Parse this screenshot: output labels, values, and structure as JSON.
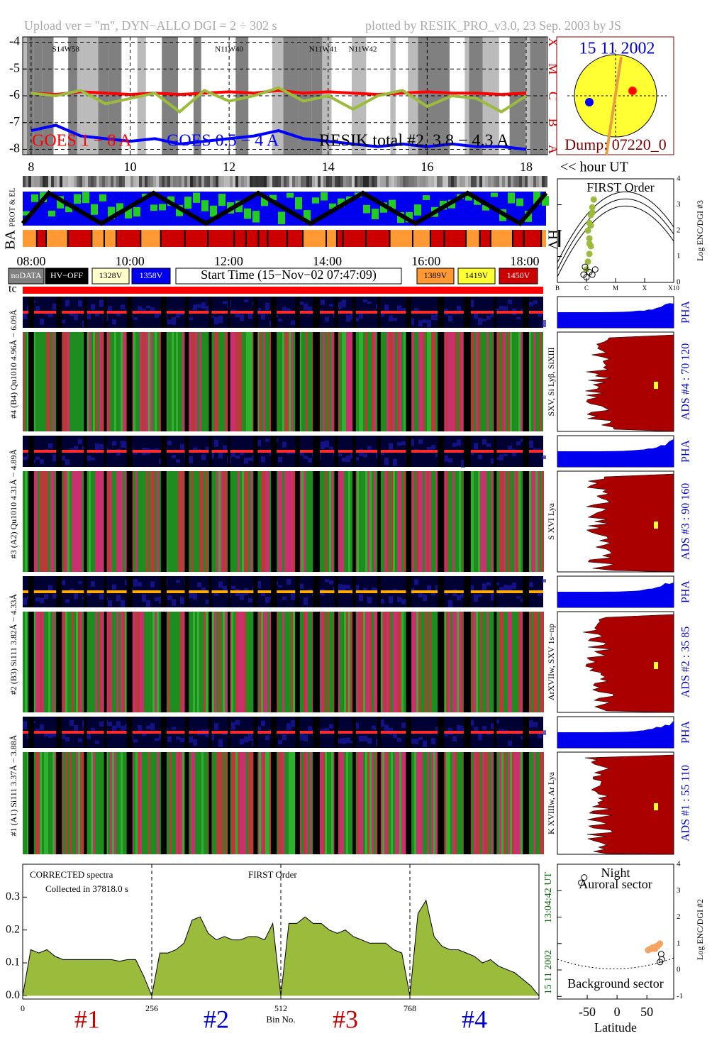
{
  "header": {
    "left": "Upload ver = \"m\", DYN−ALLO DGI =   2 ÷ 302 s",
    "right": "plotted by RESIK_PRO_v3.0, 23 Sep. 2003 by JS"
  },
  "chart_data": [
    {
      "type": "line",
      "x": [
        8,
        8.5,
        9,
        9.5,
        10,
        10.5,
        11,
        11.5,
        12,
        12.5,
        13,
        13.5,
        14,
        14.5,
        15,
        15.5,
        16,
        16.5,
        17,
        17.5,
        18
      ],
      "xlim": [
        7.83,
        18.43
      ],
      "xticks": [
        8,
        10,
        12,
        14,
        16,
        18
      ],
      "ylim": [
        -8.2,
        -3.8
      ],
      "yticks": [
        -8,
        -7,
        -6,
        -5,
        -4
      ],
      "y2lim": [
        -8.2,
        -3.8
      ],
      "y2ticks": [
        {
          "value": -8,
          "label": "A"
        },
        {
          "value": -7,
          "label": "B"
        },
        {
          "value": -6,
          "label": "C"
        },
        {
          "value": -5,
          "label": "M"
        },
        {
          "value": -4,
          "label": "X"
        }
      ],
      "grid": true,
      "x_label": "<< hour UT",
      "annotations": [
        "S14W58",
        "N11W40",
        "N11W41",
        "N11W42"
      ],
      "series": [
        {
          "name": "GOES 1 − 8 A",
          "color": "#ff0000",
          "values": [
            -5.9,
            -5.95,
            -5.85,
            -5.9,
            -5.95,
            -5.9,
            -5.95,
            -5.9,
            -5.85,
            -5.9,
            -5.8,
            -5.9,
            -5.85,
            -5.9,
            -5.95,
            -5.9,
            -5.85,
            -5.9,
            -5.9,
            -5.95,
            -5.9
          ]
        },
        {
          "name": "GOES 0.5 − 4 A",
          "color": "#0000ff",
          "values": [
            -7.3,
            -7.1,
            -7.5,
            -7.6,
            -7.7,
            -7.6,
            -7.8,
            -7.7,
            -7.6,
            -7.5,
            -7.3,
            -7.6,
            -7.7,
            -7.8,
            -7.9,
            -7.8,
            -7.9,
            -7.8,
            -7.9,
            -7.9,
            -8.0
          ]
        },
        {
          "name": "RESIK total #2, 3.8 − 4.3 A",
          "color": "#9bbb3c",
          "values": [
            -5.9,
            -6.0,
            -5.8,
            -6.3,
            -6.1,
            -5.9,
            -6.6,
            -5.8,
            -6.2,
            -6.0,
            -5.7,
            -6.2,
            -6.0,
            -6.5,
            -6.0,
            -5.8,
            -6.4,
            -6.0,
            -6.1,
            -6.6,
            -6.0
          ]
        }
      ]
    },
    {
      "type": "line",
      "title": "CORRECTED spectra",
      "subtitle": "Collected in 37818.0 s",
      "annotation": "FIRST Order",
      "x_label": "Bin No.",
      "date": "15 11 2002",
      "time": "13:04:42 UT",
      "x": [
        0,
        16,
        32,
        48,
        64,
        80,
        96,
        112,
        128,
        144,
        160,
        176,
        192,
        208,
        224,
        240,
        256,
        272,
        288,
        304,
        320,
        336,
        352,
        368,
        384,
        400,
        416,
        432,
        448,
        464,
        480,
        496,
        512,
        528,
        544,
        560,
        576,
        592,
        608,
        624,
        640,
        656,
        672,
        688,
        704,
        720,
        736,
        752,
        768,
        784,
        800,
        816,
        832,
        848,
        864,
        880,
        896,
        912,
        928,
        944,
        960,
        976,
        992,
        1008,
        1024
      ],
      "xlim": [
        0,
        1024
      ],
      "xticks": [
        0,
        256,
        512,
        768
      ],
      "ylim": [
        -0.01,
        0.4
      ],
      "yticks": [
        {
          "value": 0,
          "label": "0.0"
        },
        {
          "value": 0.1,
          "label": "0.1"
        },
        {
          "value": 0.2,
          "label": "0.2"
        },
        {
          "value": 0.3,
          "label": "0.3"
        }
      ],
      "grid": false,
      "series": [
        {
          "color": "#000000",
          "fill": "#9bbb3c",
          "values": [
            0,
            0.14,
            0.13,
            0.14,
            0.12,
            0.11,
            0.11,
            0.11,
            0.11,
            0.11,
            0.11,
            0.11,
            0.105,
            0.11,
            0.11,
            0.06,
            0,
            0.13,
            0.13,
            0.14,
            0.16,
            0.23,
            0.24,
            0.19,
            0.17,
            0.18,
            0.17,
            0.17,
            0.18,
            0.18,
            0.17,
            0.22,
            0,
            0.22,
            0.22,
            0.24,
            0.22,
            0.22,
            0.2,
            0.19,
            0.2,
            0.18,
            0.17,
            0.16,
            0.16,
            0.16,
            0.14,
            0.13,
            0,
            0.25,
            0.29,
            0.18,
            0.15,
            0.14,
            0.14,
            0.13,
            0.12,
            0.1,
            0.11,
            0.09,
            0.08,
            0.07,
            0.05,
            0.03,
            0
          ]
        }
      ],
      "channel_labels": [
        {
          "text": "#1",
          "color": "#cc0000"
        },
        {
          "text": "#2",
          "color": "#0000cc"
        },
        {
          "text": "#3",
          "color": "#cc0000"
        },
        {
          "text": "#4",
          "color": "#0000cc"
        }
      ]
    },
    {
      "type": "scatter",
      "title": "FIRST Order",
      "y_label": "Log ENC/DGI #3",
      "xlim": [
        -7,
        -3
      ],
      "xticks": [
        {
          "value": -7,
          "label": "B"
        },
        {
          "value": -6,
          "label": "C"
        },
        {
          "value": -5,
          "label": "M"
        },
        {
          "value": -4,
          "label": "X"
        },
        {
          "value": -3,
          "label": "X10"
        }
      ],
      "ylim": [
        0,
        4
      ],
      "yticks": [
        0,
        1,
        2,
        3,
        4
      ],
      "grid": false,
      "series": [
        {
          "color": "#9bbb3c",
          "x": [
            -6.0,
            -5.95,
            -5.9,
            -5.85,
            -5.9,
            -5.95,
            -5.9,
            -5.85,
            -5.8,
            -5.75,
            -5.8,
            -5.85,
            -5.9
          ],
          "values": [
            0.5,
            0.8,
            1.1,
            1.4,
            1.7,
            2.0,
            2.3,
            2.6,
            2.9,
            3.2,
            2.7,
            2.2,
            1.5
          ]
        },
        {
          "color": "#000000",
          "x": [
            -6.1,
            -6.0,
            -5.9,
            -5.8,
            -5.7,
            -6.05
          ],
          "values": [
            0.3,
            0.2,
            0.4,
            0.3,
            0.5,
            0.6
          ]
        }
      ]
    },
    {
      "type": "scatter",
      "title": "Night",
      "subtitle": "Auroral sector",
      "annotation": "Background sector",
      "x_label": "Latitude",
      "y_label": "Log ENC/DGI #2",
      "xlim": [
        -100,
        95
      ],
      "xticks": [
        -50,
        0,
        50
      ],
      "ylim": [
        -1.1,
        4
      ],
      "yticks": [
        -1,
        0,
        1,
        2,
        3,
        4
      ],
      "grid": false,
      "series": [
        {
          "color": "#f4a460",
          "x": [
            52,
            56,
            60,
            64,
            68,
            70,
            72,
            62,
            58,
            66
          ],
          "values": [
            0.75,
            0.8,
            0.85,
            0.8,
            0.9,
            0.95,
            1.0,
            0.85,
            0.8,
            0.9
          ]
        },
        {
          "color": "#000000",
          "x": [
            -60,
            -55,
            74,
            75,
            72
          ],
          "values": [
            3.3,
            3.5,
            0.6,
            0.4,
            0.3
          ]
        }
      ]
    }
  ],
  "sun": {
    "date": "15 11 2002",
    "dump": "Dump: 07220_0"
  },
  "status": {
    "prot": "PROT & EL",
    "ba": "BA",
    "hv": "HV",
    "tc": "tc",
    "times": [
      "08:00",
      "10:00",
      "12:00",
      "14:00",
      "16:00",
      "18:00"
    ]
  },
  "legend": [
    "noDATA",
    "HV−OFF",
    "1328V",
    "1358V",
    "Start Time (15−Nov−02 07:47:09)",
    "1389V",
    "1419V",
    "1450V"
  ],
  "channels": [
    {
      "label": "#4 (B4) Qu1010 4.96Å − 6.09Å",
      "lines": "SXV, Si Lyβ, SiXIII",
      "ads": "ADS #4 :  70 120",
      "pha": "PHA"
    },
    {
      "label": "#3 (A2) Qu1010 4.31Å − 4.89Å",
      "lines": "S XVI Lya",
      "ads": "ADS #3 :  90 160",
      "pha": "PHA"
    },
    {
      "label": "#2 (B3) Si111 3.82Å − 4.33Å",
      "lines": "ArXVIIw, SXV 1s−np",
      "ads": "ADS #2 :  35  85",
      "pha": "PHA"
    },
    {
      "label": "#1 (A1) Si111 3.37Å − 3.88Å",
      "lines": "K XVIIIw, Ar Lya",
      "ads": "ADS #1 :  55 110",
      "pha": "PHA"
    }
  ]
}
